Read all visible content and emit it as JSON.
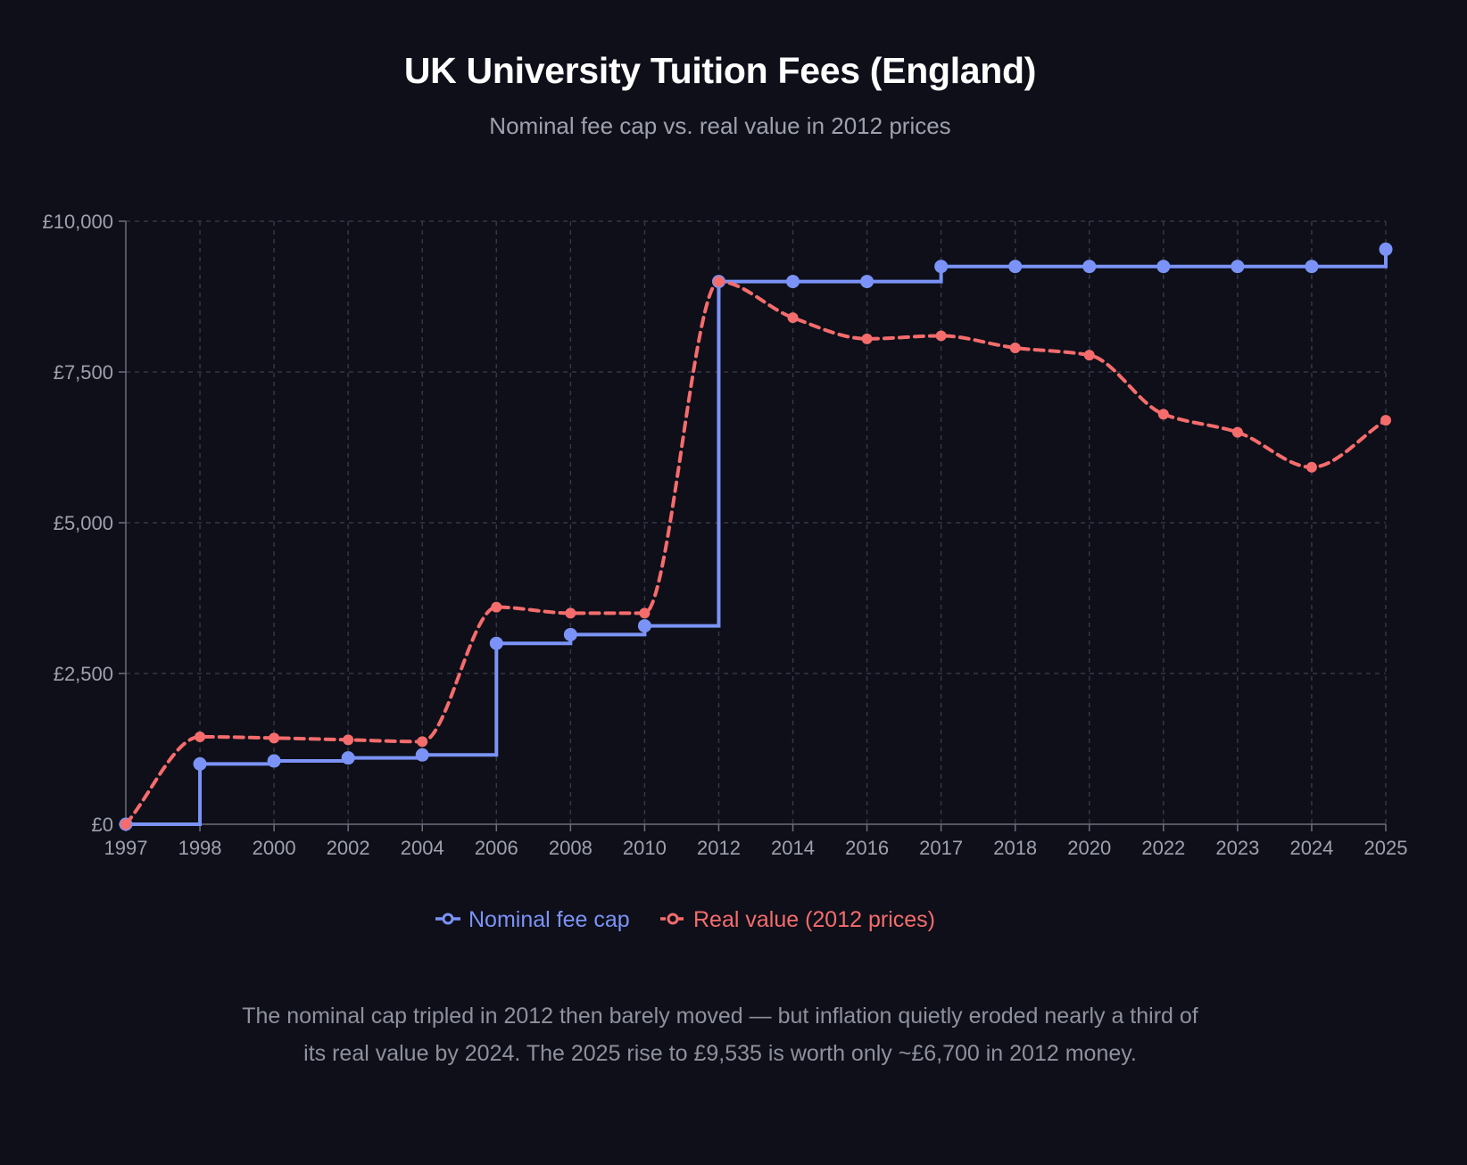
{
  "title": "UK University Tuition Fees (England)",
  "subtitle": "Nominal fee cap vs. real value in 2012 prices",
  "caption": "The nominal cap tripled in 2012 then barely moved — but inflation quietly eroded nearly a third of its real value by 2024. The 2025 rise to £9,535 is worth only ~£6,700 in 2012 money.",
  "chart_data": {
    "type": "line",
    "title": "UK University Tuition Fees (England)",
    "subtitle": "Nominal fee cap vs. real value in 2012 prices",
    "categories": [
      "1997",
      "1998",
      "2000",
      "2002",
      "2004",
      "2006",
      "2008",
      "2010",
      "2012",
      "2014",
      "2016",
      "2017",
      "2018",
      "2020",
      "2022",
      "2023",
      "2024",
      "2025"
    ],
    "y_ticks": [
      "£0",
      "£2,500",
      "£5,000",
      "£7,500",
      "£10,000"
    ],
    "ylim": [
      0,
      10000
    ],
    "grid": true,
    "legend_position": "bottom-center",
    "series": [
      {
        "name": "Nominal fee cap",
        "color": "#7b93f6",
        "style": "step-solid",
        "values": [
          0,
          1000,
          1050,
          1100,
          1150,
          3000,
          3145,
          3290,
          9000,
          9000,
          9000,
          9250,
          9250,
          9250,
          9250,
          9250,
          9250,
          9535
        ]
      },
      {
        "name": "Real value (2012 prices)",
        "color": "#f56c6c",
        "style": "smooth-dashed",
        "values": [
          0,
          1450,
          1430,
          1400,
          1370,
          3600,
          3500,
          3500,
          9000,
          8400,
          8050,
          8100,
          7900,
          7780,
          6800,
          6500,
          5920,
          6700
        ]
      }
    ]
  }
}
